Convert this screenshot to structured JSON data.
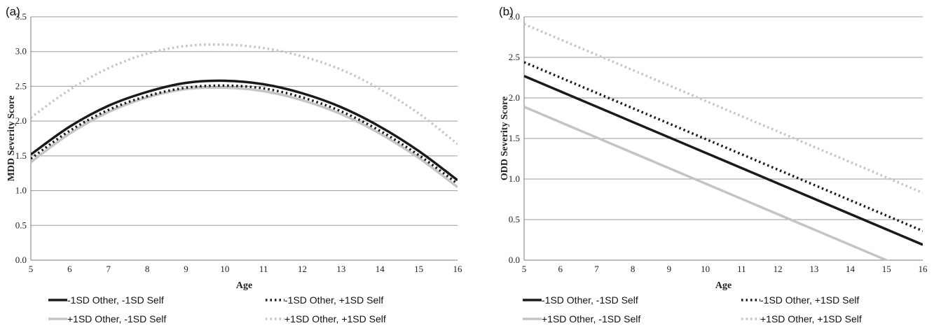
{
  "chart_data": [
    {
      "panel_label": "(a)",
      "type": "line",
      "xlabel": "Age",
      "ylabel": "MDD Severity Score",
      "xlim": [
        5,
        16
      ],
      "ylim": [
        0,
        3.5
      ],
      "x_ticks": [
        "5",
        "6",
        "7",
        "8",
        "9",
        "10",
        "11",
        "12",
        "13",
        "14",
        "15",
        "16"
      ],
      "y_ticks": [
        "0.0",
        "0.5",
        "1.0",
        "1.5",
        "2.0",
        "2.5",
        "3.0",
        "3.5"
      ],
      "grid": "horizontal",
      "legend_position": "bottom",
      "x": [
        5,
        6,
        7,
        8,
        9,
        10,
        11,
        12,
        13,
        14,
        15,
        16
      ],
      "series": [
        {
          "name": "-1SD Other, -1SD Self",
          "style": "solid",
          "color": "#1a1a1a",
          "values": [
            1.52,
            1.92,
            2.22,
            2.42,
            2.55,
            2.58,
            2.53,
            2.4,
            2.2,
            1.92,
            1.57,
            1.15
          ]
        },
        {
          "name": "-1SD Other, +1SD Self",
          "style": "dotted",
          "color": "#1a1a1a",
          "values": [
            1.46,
            1.86,
            2.16,
            2.36,
            2.48,
            2.51,
            2.47,
            2.34,
            2.14,
            1.86,
            1.51,
            1.1
          ]
        },
        {
          "name": "+1SD Other, -1SD Self",
          "style": "solid",
          "color": "#c4c4c4",
          "values": [
            1.41,
            1.82,
            2.13,
            2.34,
            2.46,
            2.48,
            2.43,
            2.3,
            2.1,
            1.82,
            1.47,
            1.05
          ]
        },
        {
          "name": "+1SD Other, +1SD Self",
          "style": "dotted",
          "color": "#c4c4c4",
          "values": [
            2.05,
            2.45,
            2.76,
            2.97,
            3.08,
            3.1,
            3.05,
            2.93,
            2.74,
            2.46,
            2.11,
            1.67
          ]
        }
      ]
    },
    {
      "panel_label": "(b)",
      "type": "line",
      "xlabel": "Age",
      "ylabel": "ODD Severity Score",
      "xlim": [
        5,
        16
      ],
      "ylim": [
        0,
        3.0
      ],
      "x_ticks": [
        "5",
        "6",
        "7",
        "8",
        "9",
        "10",
        "11",
        "12",
        "13",
        "14",
        "15",
        "16"
      ],
      "y_ticks": [
        "0.0",
        "0.5",
        "1.0",
        "1.5",
        "2.0",
        "2.5",
        "3.0"
      ],
      "grid": "horizontal",
      "legend_position": "bottom",
      "x": [
        5,
        16
      ],
      "series": [
        {
          "name": "-1SD Other, -1SD Self",
          "style": "solid",
          "color": "#1a1a1a",
          "values": [
            2.27,
            0.19
          ]
        },
        {
          "name": "-1SD Other, +1SD Self",
          "style": "dotted",
          "color": "#1a1a1a",
          "values": [
            2.44,
            0.36
          ]
        },
        {
          "name": "+1SD Other, -1SD Self",
          "style": "solid",
          "color": "#c4c4c4",
          "values": [
            1.89,
            -0.19
          ]
        },
        {
          "name": "+1SD Other, +1SD Self",
          "style": "dotted",
          "color": "#c4c4c4",
          "values": [
            2.91,
            0.83
          ]
        }
      ]
    }
  ]
}
